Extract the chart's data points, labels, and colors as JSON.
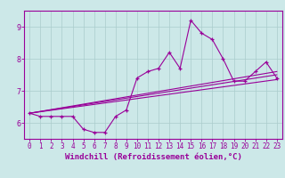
{
  "title": "",
  "xlabel": "Windchill (Refroidissement éolien,°C)",
  "background_color": "#cce8e8",
  "line_color": "#990099",
  "xlim": [
    -0.5,
    23.5
  ],
  "ylim": [
    5.5,
    9.5
  ],
  "xticks": [
    0,
    1,
    2,
    3,
    4,
    5,
    6,
    7,
    8,
    9,
    10,
    11,
    12,
    13,
    14,
    15,
    16,
    17,
    18,
    19,
    20,
    21,
    22,
    23
  ],
  "yticks": [
    6,
    7,
    8,
    9
  ],
  "series1_x": [
    0,
    1,
    2,
    3,
    4,
    5,
    6,
    7,
    8,
    9,
    10,
    11,
    12,
    13,
    14,
    15,
    16,
    17,
    18,
    19,
    20,
    21,
    22,
    23
  ],
  "series1_y": [
    6.3,
    6.2,
    6.2,
    6.2,
    6.2,
    5.8,
    5.7,
    5.7,
    6.2,
    6.4,
    7.4,
    7.6,
    7.7,
    8.2,
    7.7,
    9.2,
    8.8,
    8.6,
    8.0,
    7.3,
    7.3,
    7.6,
    7.9,
    7.4
  ],
  "series2_x": [
    0,
    23
  ],
  "series2_y": [
    6.3,
    7.6
  ],
  "series3_x": [
    0,
    23
  ],
  "series3_y": [
    6.3,
    7.5
  ],
  "series4_x": [
    0,
    23
  ],
  "series4_y": [
    6.3,
    7.35
  ],
  "grid_color": "#aacccc",
  "tick_fontsize": 5.5,
  "xlabel_fontsize": 6.5,
  "lw": 0.8
}
